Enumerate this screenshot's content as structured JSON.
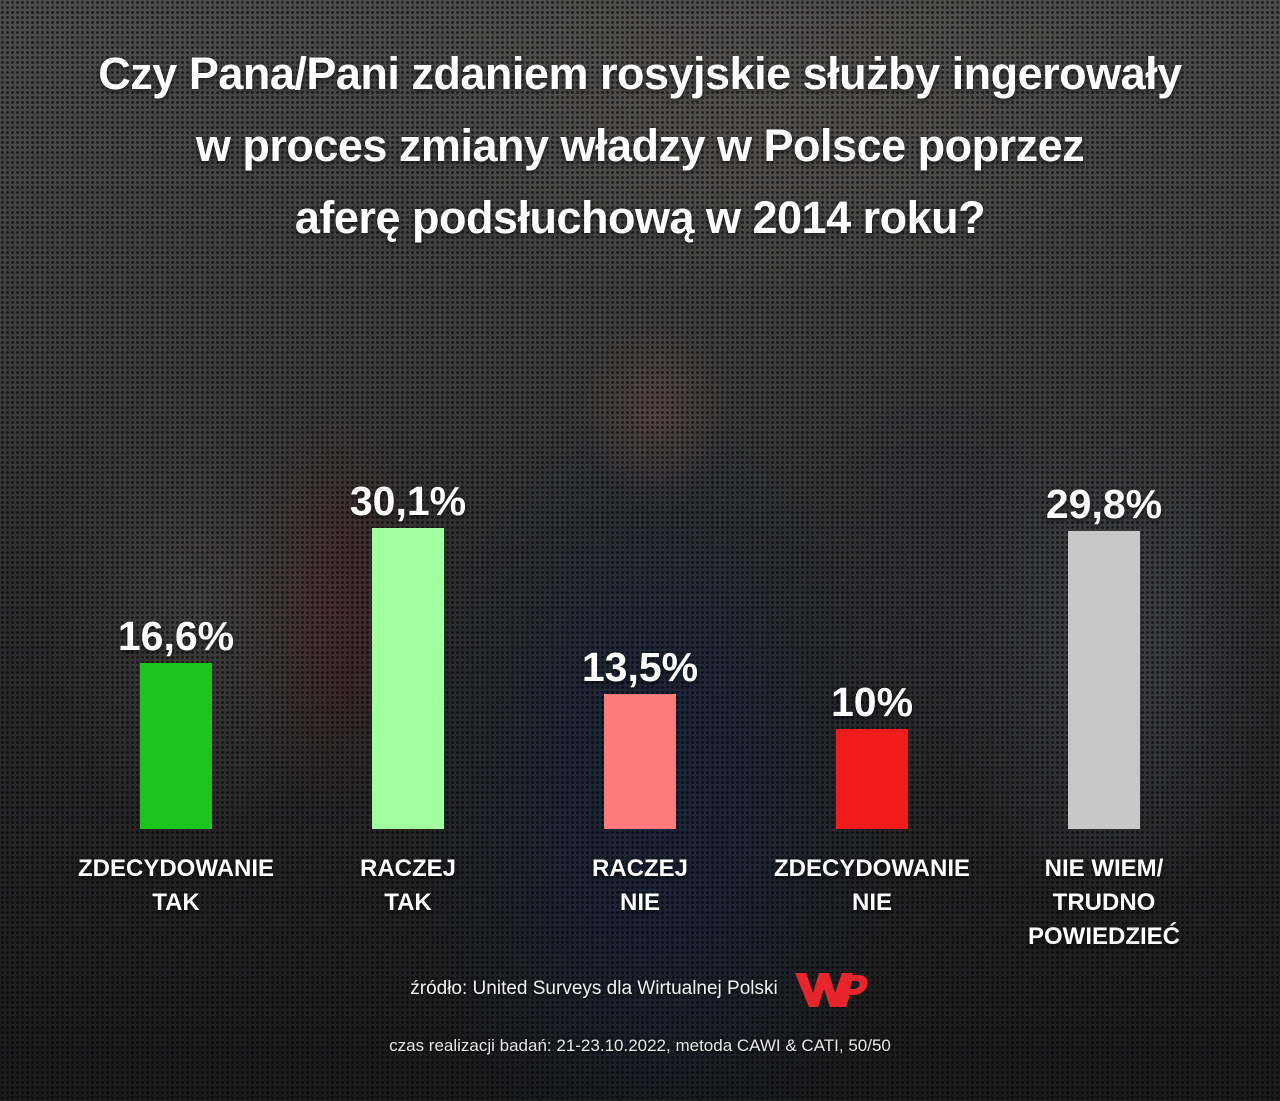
{
  "title_lines": [
    "Czy Pana/Pani zdaniem rosyjskie służby ingerowały",
    "w proces zmiany władzy w Polsce poprzez",
    "aferę podsłuchową w 2014 roku?"
  ],
  "chart_data": {
    "type": "bar",
    "title": "Czy Pana/Pani zdaniem rosyjskie służby ingerowały w proces zmiany władzy w Polsce poprzez aferę podsłuchową w 2014 roku?",
    "categories": [
      [
        "ZDECYDOWANIE",
        "TAK"
      ],
      [
        "RACZEJ",
        "TAK"
      ],
      [
        "RACZEJ",
        "NIE"
      ],
      [
        "ZDECYDOWANIE",
        "NIE"
      ],
      [
        "NIE WIEM/",
        "TRUDNO POWIEDZIEĆ"
      ]
    ],
    "values": [
      16.6,
      30.1,
      13.5,
      10,
      29.8
    ],
    "value_labels": [
      "16,6%",
      "30,1%",
      "13,5%",
      "10%",
      "29,8%"
    ],
    "colors": [
      "#1cc51c",
      "#a2ff9f",
      "#ff7b7b",
      "#f21b1b",
      "#c8c8c8"
    ],
    "unit": "%",
    "grid": false,
    "legend": "none",
    "xlabel": "",
    "ylabel": ""
  },
  "source": "źródło: United Surveys dla Wirtualnej Polski",
  "logo": {
    "name": "wp-logo",
    "text": "WP",
    "color": "#e8252b"
  },
  "method": "czas realizacji badań: 21-23.10.2022, metoda CAWI & CATI, 50/50"
}
